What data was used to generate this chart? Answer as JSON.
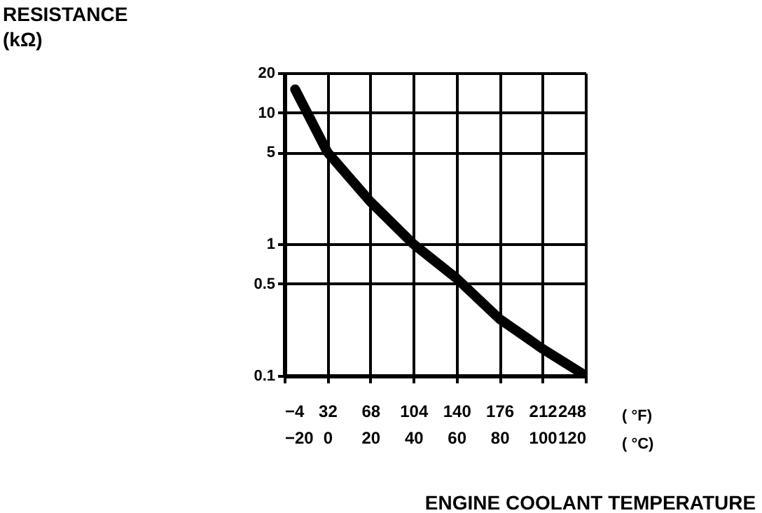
{
  "chart_data": {
    "type": "line",
    "xlabel": "ENGINE COOLANT TEMPERATURE",
    "x2label": "( °F)",
    "annotations": [
      "RESISTANCE\n(kΩ)",
      "( °C)"
    ],
    "x": [
      -15,
      0,
      20,
      40,
      60,
      80,
      100,
      120
    ],
    "series": [
      {
        "color": "#000000",
        "values": [
          15,
          5,
          2.1,
          1,
          0.55,
          0.27,
          0.16,
          0.1
        ]
      }
    ],
    "xlim": [
      -20,
      120
    ],
    "xticks": [
      -20,
      0,
      20,
      40,
      60,
      80,
      100,
      120
    ],
    "x2lim": [
      -4,
      248
    ],
    "x2ticks": [
      -4,
      32,
      68,
      104,
      140,
      176,
      212,
      248
    ],
    "ylim": [
      0.1,
      20
    ],
    "yticks": [
      0.1,
      0.5,
      1,
      5,
      10,
      20
    ],
    "log": true,
    "grid": true,
    "line_style": "solid"
  }
}
